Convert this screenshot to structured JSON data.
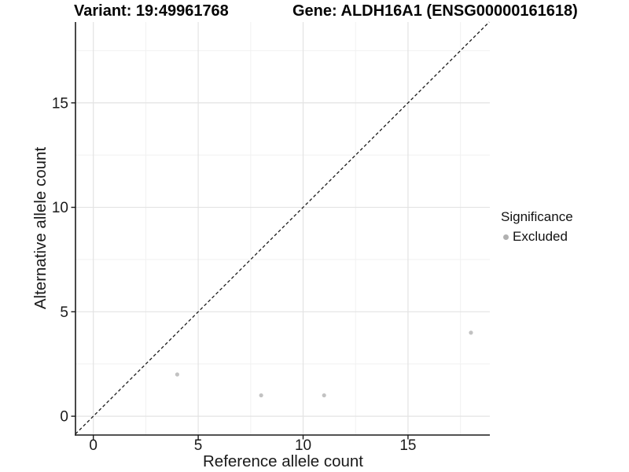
{
  "chart_data": {
    "type": "scatter",
    "titles": {
      "left": "Variant: 19:49961768",
      "right": "Gene: ALDH16A1 (ENSG00000161618)"
    },
    "xlabel": "Reference allele count",
    "ylabel": "Alternative allele count",
    "xlim": [
      -0.85,
      18.9
    ],
    "ylim": [
      -0.9,
      18.87
    ],
    "x_ticks": [
      0,
      5,
      10,
      15
    ],
    "y_ticks": [
      0,
      5,
      10,
      15
    ],
    "x_minor_ticks": [
      2.5,
      7.5,
      12.5,
      17.5
    ],
    "y_minor_ticks": [
      2.5,
      7.5,
      12.5,
      17.5
    ],
    "grid": true,
    "reference_line": {
      "type": "identity",
      "slope": 1,
      "intercept": 0,
      "style": "dashed",
      "color": "#1a1a1a"
    },
    "series": [
      {
        "name": "Excluded",
        "color": "#c2c2c2",
        "points": [
          {
            "x": 4,
            "y": 2
          },
          {
            "x": 8,
            "y": 1
          },
          {
            "x": 11,
            "y": 1
          },
          {
            "x": 18,
            "y": 4
          }
        ]
      }
    ],
    "legend": {
      "title": "Significance",
      "position": "right",
      "items": [
        {
          "label": "Excluded",
          "color": "#b0b0b0"
        }
      ]
    },
    "colors": {
      "axis": "#1a1a1a",
      "text": "#1a1a1a",
      "grid_major": "#e3e3e3",
      "grid_minor": "#f1f1f1"
    }
  }
}
